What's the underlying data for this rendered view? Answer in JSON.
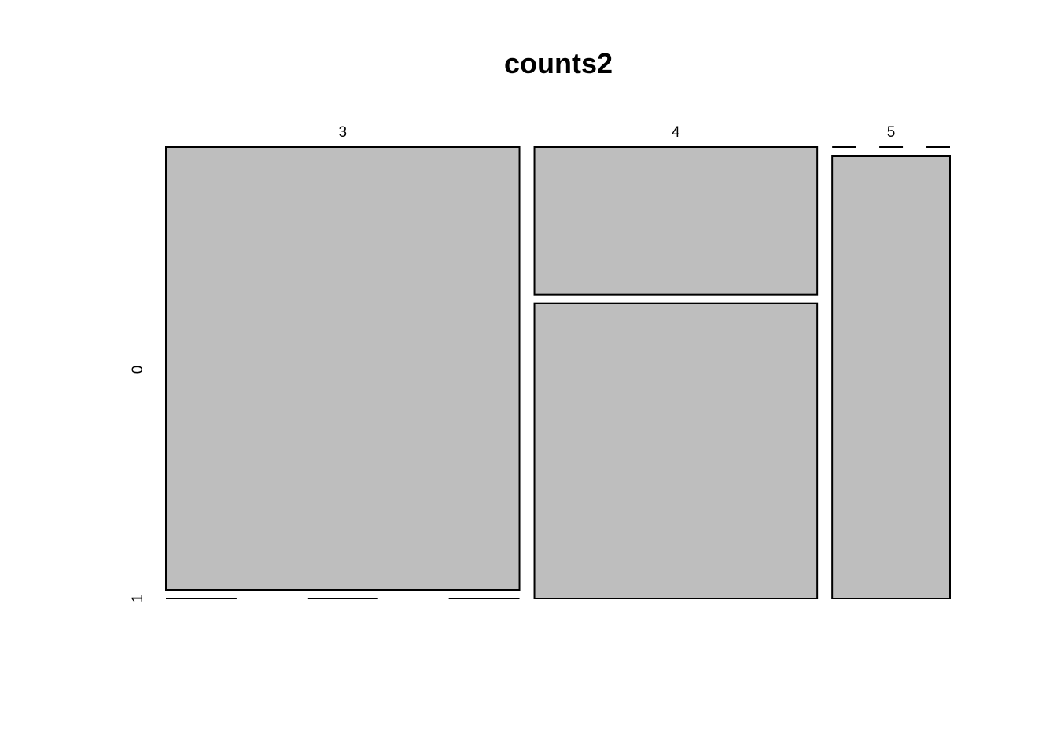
{
  "chart_data": {
    "type": "mosaic",
    "title": "counts2",
    "x_variable_levels": [
      "3",
      "4",
      "5"
    ],
    "y_variable_levels": [
      "0",
      "1"
    ],
    "counts": [
      {
        "x": "3",
        "y": "0",
        "value": 15
      },
      {
        "x": "3",
        "y": "1",
        "value": 0
      },
      {
        "x": "4",
        "y": "0",
        "value": 4
      },
      {
        "x": "4",
        "y": "1",
        "value": 8
      },
      {
        "x": "5",
        "y": "0",
        "value": 0
      },
      {
        "x": "5",
        "y": "1",
        "value": 5
      }
    ],
    "fill_color": "#bebebe",
    "border_color": "#000000"
  }
}
